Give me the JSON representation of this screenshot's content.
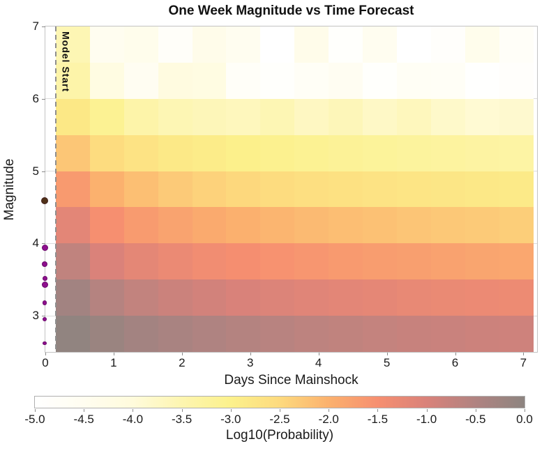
{
  "chart_data": {
    "type": "heatmap",
    "title": "One Week Magnitude vs Time Forecast",
    "xlabel": "Days Since Mainshock",
    "ylabel": "Magnitude",
    "xlim": [
      0,
      7.2
    ],
    "ylim": [
      2.5,
      7
    ],
    "x_tick_labels": [
      "0",
      "1",
      "2",
      "3",
      "4",
      "5",
      "6",
      "7"
    ],
    "y_tick_labels": [
      "3",
      "4",
      "5",
      "6",
      "7"
    ],
    "grid": true,
    "time_bins": {
      "first_edge_days": 0.15,
      "bin_width_days": 0.5,
      "count": 14
    },
    "magnitude_bins": {
      "first_edge": 2.5,
      "bin_width": 0.5,
      "count": 9
    },
    "row_order": "bottom_to_top_magnitude",
    "log10_probability_values": [
      [
        -0.05,
        -0.19,
        -0.31,
        -0.4,
        -0.48,
        -0.55,
        -0.6,
        -0.66,
        -0.7,
        -0.74,
        -0.78,
        -0.81,
        -0.84,
        -0.87
      ],
      [
        -0.3,
        -0.56,
        -0.72,
        -0.83,
        -0.92,
        -1.0,
        -1.06,
        -1.12,
        -1.17,
        -1.21,
        -1.25,
        -1.29,
        -1.32,
        -1.35
      ],
      [
        -0.7,
        -1.01,
        -1.19,
        -1.31,
        -1.41,
        -1.48,
        -1.55,
        -1.61,
        -1.66,
        -1.7,
        -1.74,
        -1.78,
        -1.82,
        -1.85
      ],
      [
        -1.17,
        -1.5,
        -1.68,
        -1.8,
        -1.9,
        -1.98,
        -2.05,
        -2.11,
        -2.16,
        -2.2,
        -2.24,
        -2.28,
        -2.31,
        -2.35
      ],
      [
        -1.66,
        -2.0,
        -2.17,
        -2.3,
        -2.4,
        -2.48,
        -2.54,
        -2.6,
        -2.65,
        -2.7,
        -2.74,
        -2.77,
        -2.81,
        -2.84
      ],
      [
        -2.25,
        -2.55,
        -2.7,
        -2.82,
        -2.9,
        -2.97,
        -3.04,
        -3.1,
        -3.15,
        -3.19,
        -3.23,
        -3.27,
        -3.31,
        -3.34
      ],
      [
        -2.8,
        -3.1,
        -3.4,
        -3.55,
        -3.6,
        -3.65,
        -3.55,
        -3.7,
        -3.6,
        -3.75,
        -3.65,
        -3.8,
        -3.9,
        -3.85
      ],
      [
        -3.4,
        -4.15,
        -4.55,
        -4.1,
        -4.15,
        -4.75,
        -4.9,
        -4.7,
        -4.55,
        -4.9,
        -4.65,
        -4.7,
        -4.95,
        -4.85
      ],
      [
        -3.55,
        -4.5,
        -4.4,
        -4.8,
        -4.35,
        -4.5,
        -5.0,
        -4.35,
        -4.9,
        -4.5,
        -5.0,
        -4.85,
        -4.4,
        -4.75
      ]
    ],
    "colorbar": {
      "label": "Log10(Probability)",
      "min": -5.0,
      "max": 0.0,
      "tick_labels": [
        "-5.0",
        "-4.5",
        "-4.0",
        "-3.5",
        "-3.0",
        "-2.5",
        "-2.0",
        "-1.5",
        "-1.0",
        "-0.5",
        "0.0"
      ],
      "stops": [
        [
          -5.0,
          "#ffffff"
        ],
        [
          -4.5,
          "#fffdf0"
        ],
        [
          -4.0,
          "#fffbdc"
        ],
        [
          -3.5,
          "#fdf5b0"
        ],
        [
          -3.0,
          "#fcf18c"
        ],
        [
          -2.5,
          "#fdda7e"
        ],
        [
          -2.0,
          "#fbb16e"
        ],
        [
          -1.5,
          "#f68f70"
        ],
        [
          -1.0,
          "#d9827a"
        ],
        [
          -0.5,
          "#b08381"
        ],
        [
          0.0,
          "#8d8480"
        ]
      ]
    },
    "model_start": {
      "label": "Model Start",
      "day": 0.15
    },
    "observed_events": [
      {
        "day": 0,
        "magnitude": 4.6,
        "marker_px": 8,
        "color": "#503118"
      },
      {
        "day": 0,
        "magnitude": 3.95,
        "marker_px": 7,
        "color": "#8e0f8e"
      },
      {
        "day": 0,
        "magnitude": 3.72,
        "marker_px": 6,
        "color": "#8e0f8e"
      },
      {
        "day": 0,
        "magnitude": 3.53,
        "marker_px": 5,
        "color": "#8e0f8e"
      },
      {
        "day": 0,
        "magnitude": 3.44,
        "marker_px": 7,
        "color": "#8e0f8e"
      },
      {
        "day": 0,
        "magnitude": 3.19,
        "marker_px": 4.5,
        "color": "#8e0f8e"
      },
      {
        "day": 0,
        "magnitude": 2.96,
        "marker_px": 4,
        "color": "#8e0f8e"
      },
      {
        "day": 0,
        "magnitude": 2.63,
        "marker_px": 3.5,
        "color": "#8e0f8e"
      }
    ],
    "colors": {
      "grid": "#dcdcdc",
      "spine": "#c3c3c3",
      "model_start_line": "#8f8f8f",
      "text": "#1a1a1a"
    }
  }
}
